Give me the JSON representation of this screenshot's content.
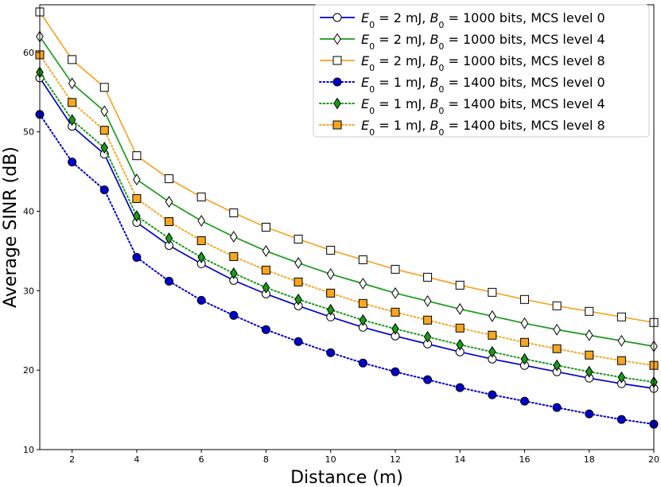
{
  "chart_data": {
    "type": "line",
    "xlabel": "Distance (m)",
    "ylabel": "Average SINR (dB)",
    "xlim": [
      1,
      20
    ],
    "ylim": [
      10,
      66
    ],
    "xticks": [
      2,
      4,
      6,
      8,
      10,
      12,
      14,
      16,
      18,
      20
    ],
    "yticks": [
      10,
      20,
      30,
      40,
      50,
      60
    ],
    "grid": false,
    "legend_position": "top-right",
    "x": [
      1,
      2,
      3,
      4,
      5,
      6,
      7,
      8,
      9,
      10,
      11,
      12,
      13,
      14,
      15,
      16,
      17,
      18,
      19,
      20
    ],
    "series": [
      {
        "e_value": "2",
        "b_value": "1000",
        "mcs_text": "MCS level 0",
        "color": "#0000cc",
        "line_style": "solid",
        "marker": "circle",
        "marker_fill": "#ffffff",
        "values": [
          56.8,
          50.7,
          47.2,
          38.6,
          35.7,
          33.4,
          31.3,
          29.6,
          28.1,
          26.7,
          25.4,
          24.3,
          23.3,
          22.3,
          21.4,
          20.6,
          19.8,
          19.0,
          18.3,
          17.7
        ]
      },
      {
        "e_value": "2",
        "b_value": "1000",
        "mcs_text": "MCS level 4",
        "color": "#1a9a1a",
        "line_style": "solid",
        "marker": "thin-diamond",
        "marker_fill": "#ffffff",
        "values": [
          62.0,
          56.1,
          52.6,
          44.0,
          41.2,
          38.8,
          36.8,
          35.0,
          33.5,
          32.1,
          30.9,
          29.7,
          28.7,
          27.7,
          26.8,
          25.9,
          25.1,
          24.4,
          23.7,
          23.0
        ]
      },
      {
        "e_value": "2",
        "b_value": "1000",
        "mcs_text": "MCS level 8",
        "color": "#f5a623",
        "line_style": "solid",
        "marker": "square",
        "marker_fill": "#ffffff",
        "values": [
          65.1,
          59.1,
          55.6,
          47.0,
          44.1,
          41.8,
          39.8,
          38.0,
          36.5,
          35.1,
          33.9,
          32.7,
          31.7,
          30.7,
          29.8,
          28.9,
          28.1,
          27.4,
          26.7,
          26.0
        ]
      },
      {
        "e_value": "1",
        "b_value": "1400",
        "mcs_text": "MCS level 0",
        "color": "#0000cc",
        "line_style": "dotted",
        "marker": "circle",
        "marker_fill": "#0000cc",
        "values": [
          52.2,
          46.2,
          42.7,
          34.2,
          31.2,
          28.8,
          26.9,
          25.1,
          23.6,
          22.2,
          20.9,
          19.8,
          18.8,
          17.8,
          16.9,
          16.1,
          15.3,
          14.5,
          13.8,
          13.2
        ]
      },
      {
        "e_value": "1",
        "b_value": "1400",
        "mcs_text": "MCS level 4",
        "color": "#1a9a1a",
        "line_style": "dotted",
        "marker": "thin-diamond",
        "marker_fill": "#1a9a1a",
        "values": [
          57.5,
          51.5,
          48.0,
          39.4,
          36.6,
          34.2,
          32.2,
          30.4,
          28.9,
          27.6,
          26.3,
          25.2,
          24.2,
          23.2,
          22.3,
          21.4,
          20.6,
          19.8,
          19.1,
          18.5
        ]
      },
      {
        "e_value": "1",
        "b_value": "1400",
        "mcs_text": "MCS level 8",
        "color": "#f5a623",
        "line_style": "dotted",
        "marker": "square",
        "marker_fill": "#f5a623",
        "values": [
          59.7,
          53.7,
          50.2,
          41.6,
          38.7,
          36.3,
          34.3,
          32.6,
          31.1,
          29.7,
          28.4,
          27.3,
          26.3,
          25.3,
          24.4,
          23.5,
          22.7,
          21.9,
          21.2,
          20.6
        ]
      }
    ]
  }
}
